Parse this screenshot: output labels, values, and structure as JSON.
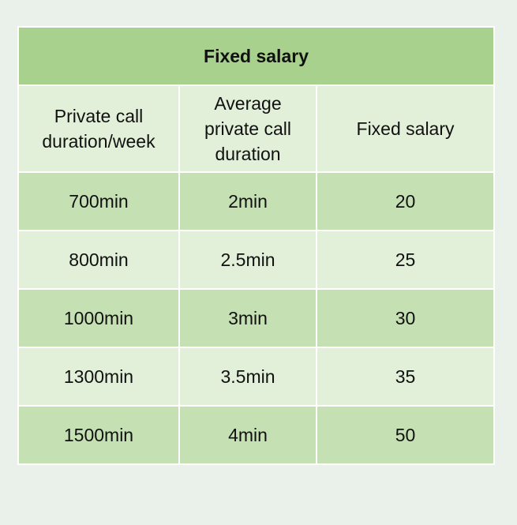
{
  "table": {
    "title": "Fixed salary",
    "headers": [
      "Private call duration/week",
      "Average private call duration",
      "Fixed salary"
    ],
    "rows": [
      [
        "700min",
        "2min",
        "20"
      ],
      [
        "800min",
        "2.5min",
        "25"
      ],
      [
        "1000min",
        "3min",
        "30"
      ],
      [
        "1300min",
        "3.5min",
        "35"
      ],
      [
        "1500min",
        "4min",
        "50"
      ]
    ]
  }
}
